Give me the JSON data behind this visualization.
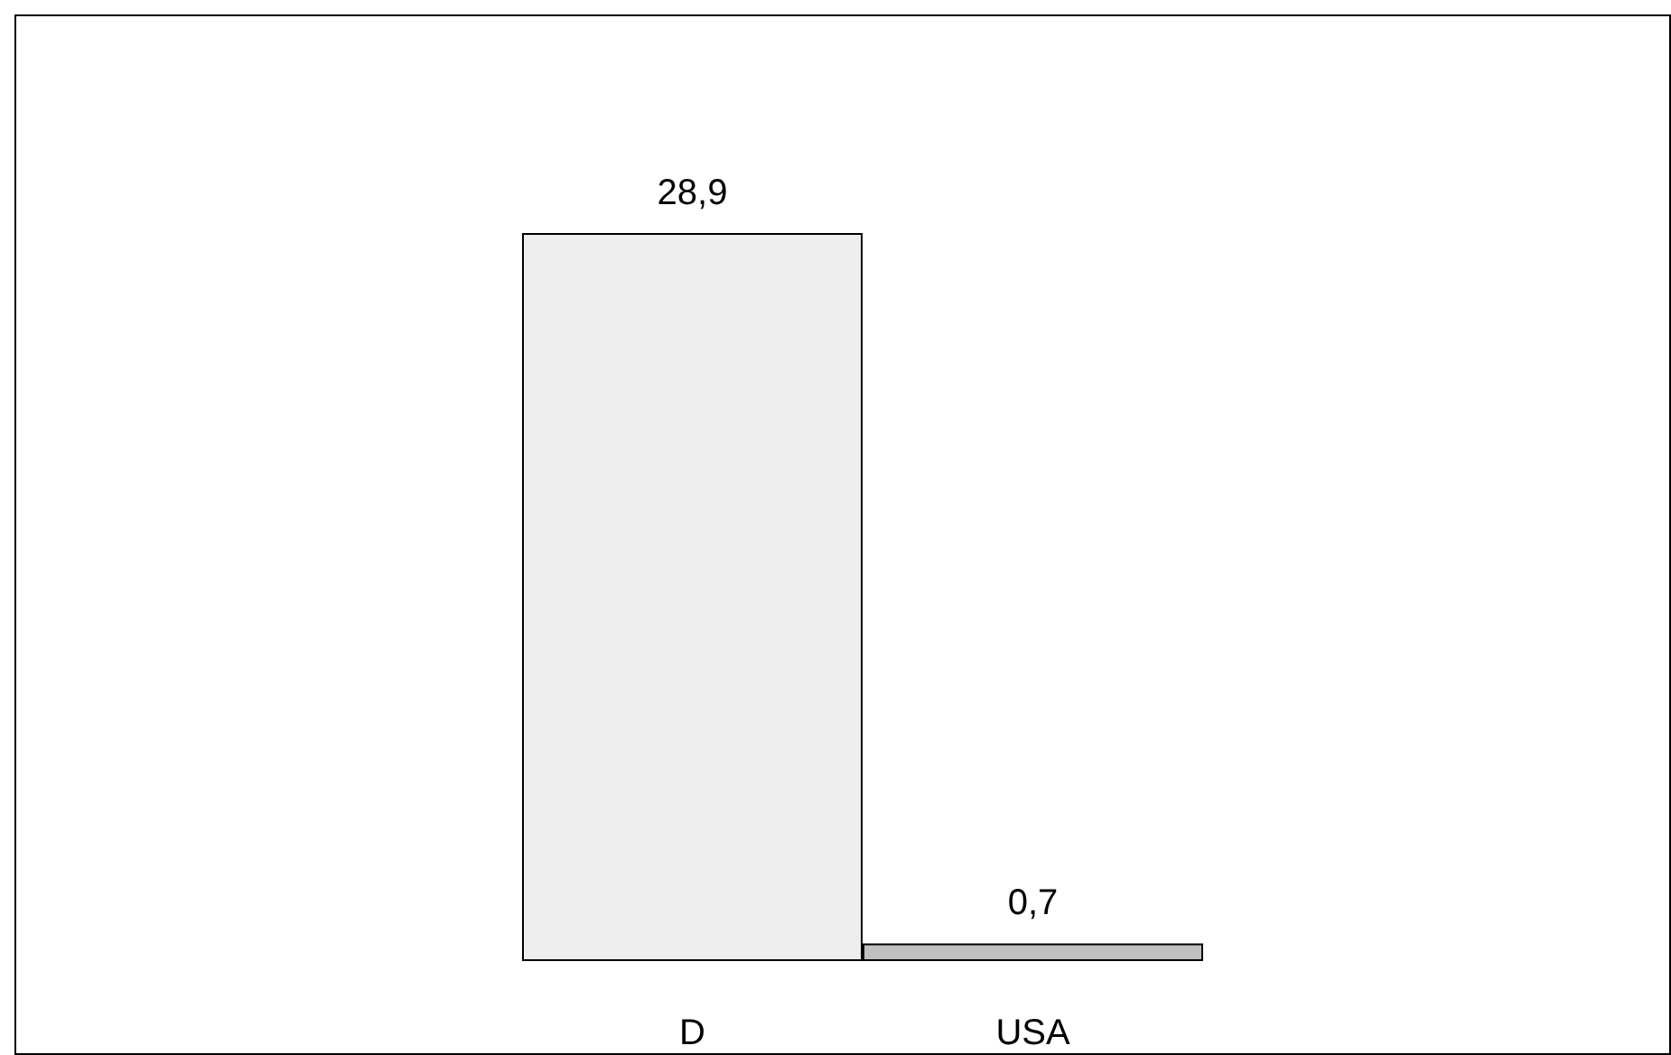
{
  "chart_data": {
    "type": "bar",
    "categories": [
      "D",
      "USA"
    ],
    "values": [
      28.9,
      0.7
    ],
    "colors": [
      "#eeeeee",
      "#c0c0c0"
    ],
    "value_labels": [
      "28,9",
      "0,7"
    ],
    "grid": false
  }
}
